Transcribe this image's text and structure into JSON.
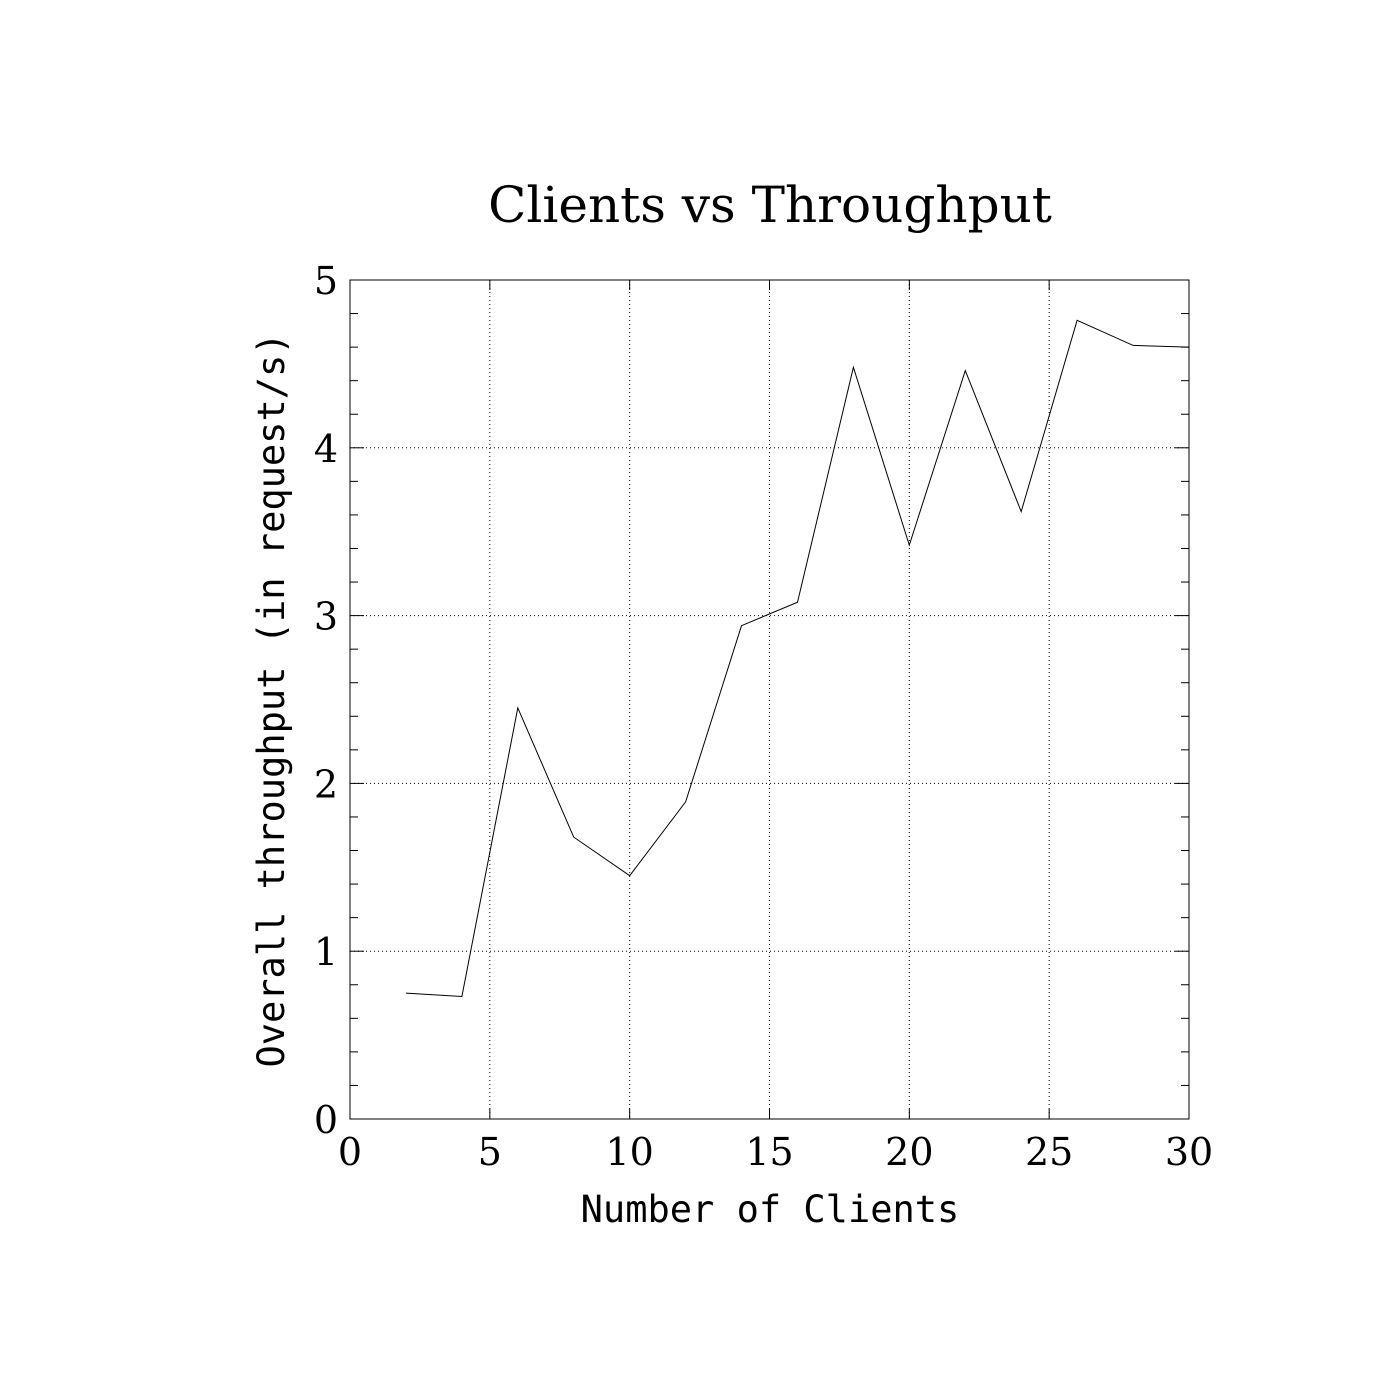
{
  "chart_data": {
    "type": "line",
    "title": "Clients vs Throughput",
    "xlabel": "Number of Clients",
    "ylabel": "Overall throughput (in request/s)",
    "xlim": [
      0,
      30
    ],
    "ylim": [
      0,
      5
    ],
    "xticks": [
      "0",
      "5",
      "10",
      "15",
      "20",
      "25",
      "30"
    ],
    "yticks": [
      "0",
      "1",
      "2",
      "3",
      "4",
      "5"
    ],
    "grid": true,
    "series": [
      {
        "x": [
          2,
          4,
          6,
          8,
          10,
          12,
          14,
          16,
          18,
          20,
          22,
          24,
          26,
          28,
          30
        ],
        "y": [
          0.75,
          0.73,
          2.45,
          1.68,
          1.45,
          1.89,
          2.94,
          3.08,
          4.48,
          3.42,
          4.46,
          3.62,
          4.76,
          4.61,
          4.6
        ]
      }
    ],
    "colors": {
      "line": "#000000",
      "background": "#ffffff"
    }
  }
}
